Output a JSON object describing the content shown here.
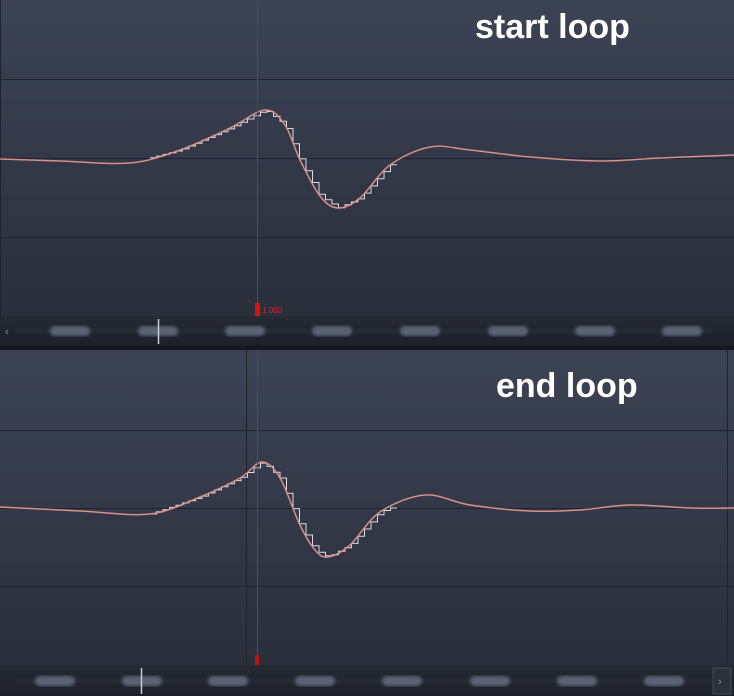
{
  "panels": [
    {
      "label": "start loop",
      "marker": "1.000"
    },
    {
      "label": "end loop"
    }
  ]
}
